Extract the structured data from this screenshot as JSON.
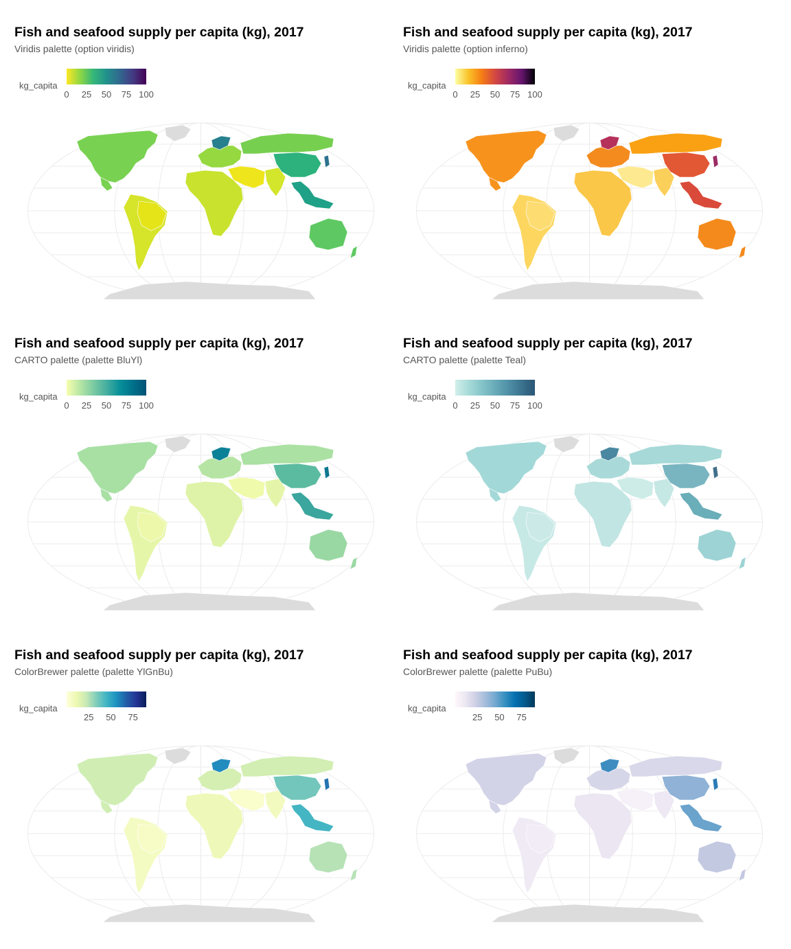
{
  "legend_label": "kg_capita",
  "land_no_data": "#dcdcdc",
  "panels": [
    {
      "title": "Fish and seafood supply per capita (kg), 2017",
      "subtitle": "Viridis palette (option viridis)",
      "ticks": [
        "0",
        "25",
        "50",
        "75",
        "100"
      ],
      "tick_values": [
        0,
        25,
        50,
        75,
        100
      ],
      "legend_min": 0,
      "legend_max": 100,
      "palette": [
        "#fde725",
        "#90d743",
        "#35b779",
        "#21918c",
        "#31688e",
        "#443983",
        "#440154"
      ],
      "regions": {
        "na": "#79d151",
        "sa": "#d6e42a",
        "eu": "#95d840",
        "ru": "#77cf50",
        "cn": "#2db27d",
        "ind": "#d3e62c",
        "me": "#efe51c",
        "af": "#c9e22e",
        "sea": "#1fa187",
        "au": "#5ec962",
        "nordic": "#27808e",
        "jp": "#2c728e",
        "br": "#e4e419"
      }
    },
    {
      "title": "Fish and seafood supply per capita (kg), 2017",
      "subtitle": "Viridis palette (option inferno)",
      "ticks": [
        "0",
        "25",
        "50",
        "75",
        "100"
      ],
      "tick_values": [
        0,
        25,
        50,
        75,
        100
      ],
      "legend_min": 0,
      "legend_max": 100,
      "palette": [
        "#fcffa4",
        "#fac228",
        "#f57d15",
        "#d44842",
        "#9f2a63",
        "#65156e",
        "#000004"
      ],
      "regions": {
        "na": "#f7931d",
        "sa": "#fcd65f",
        "eu": "#f48b1f",
        "ru": "#f9a113",
        "cn": "#e25734",
        "ind": "#fbd05a",
        "me": "#fde990",
        "af": "#fbc748",
        "sea": "#d94a3b",
        "au": "#f48a1c",
        "nordic": "#b5305a",
        "jp": "#9c2b64",
        "br": "#fddc72"
      }
    },
    {
      "title": "Fish and seafood supply per capita (kg), 2017",
      "subtitle": "CARTO palette (palette BluYl)",
      "ticks": [
        "0",
        "25",
        "50",
        "75",
        "100"
      ],
      "tick_values": [
        0,
        25,
        50,
        75,
        100
      ],
      "legend_min": 0,
      "legend_max": 100,
      "palette": [
        "#f7feae",
        "#b7e6a5",
        "#7ccba2",
        "#46aea0",
        "#089099",
        "#00718b",
        "#045275"
      ],
      "regions": {
        "na": "#a8e0a4",
        "sa": "#e6f6a9",
        "eu": "#b6e4a4",
        "ru": "#abe1a3",
        "cn": "#5bbba1",
        "ind": "#e4f5a9",
        "me": "#f0faab",
        "af": "#dff3a8",
        "sea": "#3aa69e",
        "au": "#9ad8a3",
        "nordic": "#0a8196",
        "jp": "#0d7791",
        "br": "#edf8ab"
      }
    },
    {
      "title": "Fish and seafood supply per capita (kg), 2017",
      "subtitle": "CARTO palette (palette Teal)",
      "ticks": [
        "0",
        "25",
        "50",
        "75",
        "100"
      ],
      "tick_values": [
        0,
        25,
        50,
        75,
        100
      ],
      "legend_min": 0,
      "legend_max": 100,
      "palette": [
        "#d1eeea",
        "#a8dbd9",
        "#85c4c9",
        "#68abb8",
        "#4f90a6",
        "#3b738f",
        "#2a5674"
      ],
      "regions": {
        "na": "#a3d8d8",
        "sa": "#c7e9e6",
        "eu": "#a9dad9",
        "ru": "#a6d9d8",
        "cn": "#79b5c0",
        "ind": "#c6e8e5",
        "me": "#cdece8",
        "af": "#c1e5e3",
        "sea": "#6aaeb9",
        "au": "#9dd3d4",
        "nordic": "#4a87a0",
        "jp": "#436f8a",
        "br": "#cbeae7"
      }
    },
    {
      "title": "Fish and seafood supply per capita (kg), 2017",
      "subtitle": "ColorBrewer palette (palette YlGnBu)",
      "ticks": [
        "25",
        "50",
        "75"
      ],
      "tick_values": [
        25,
        50,
        75
      ],
      "legend_min": 0,
      "legend_max": 90,
      "palette": [
        "#ffffd9",
        "#edf8b1",
        "#c7e9b4",
        "#7fcdbb",
        "#41b6c4",
        "#1d91c0",
        "#225ea8",
        "#253494",
        "#081d58"
      ],
      "regions": {
        "na": "#d0eeb4",
        "sa": "#f4fbc2",
        "eu": "#d5efb3",
        "ru": "#d2eeb3",
        "cn": "#72c6bb",
        "ind": "#f2fabf",
        "me": "#fafdcc",
        "af": "#eef9b9",
        "sea": "#44b5c3",
        "au": "#b6e2b6",
        "nordic": "#238cbf",
        "jp": "#2373b1",
        "br": "#f7fcc6"
      }
    },
    {
      "title": "Fish and seafood supply per capita (kg), 2017",
      "subtitle": "ColorBrewer palette (palette PuBu)",
      "ticks": [
        "25",
        "50",
        "75"
      ],
      "tick_values": [
        25,
        50,
        75
      ],
      "legend_min": 0,
      "legend_max": 90,
      "palette": [
        "#fff7fb",
        "#ece7f2",
        "#d0d1e6",
        "#a6bddb",
        "#74a9cf",
        "#3690c0",
        "#0570b0",
        "#045a8d",
        "#023858"
      ],
      "regions": {
        "na": "#d3d3e8",
        "sa": "#efeaf4",
        "eu": "#d6d6e9",
        "ru": "#d8d8ea",
        "cn": "#8fb2d6",
        "ind": "#ede8f3",
        "me": "#f6f1f8",
        "af": "#ebe6f1",
        "sea": "#6aa3cc",
        "au": "#c3c9e1",
        "nordic": "#3f8dc0",
        "jp": "#2b7bb6",
        "br": "#f1ecf5"
      }
    }
  ]
}
